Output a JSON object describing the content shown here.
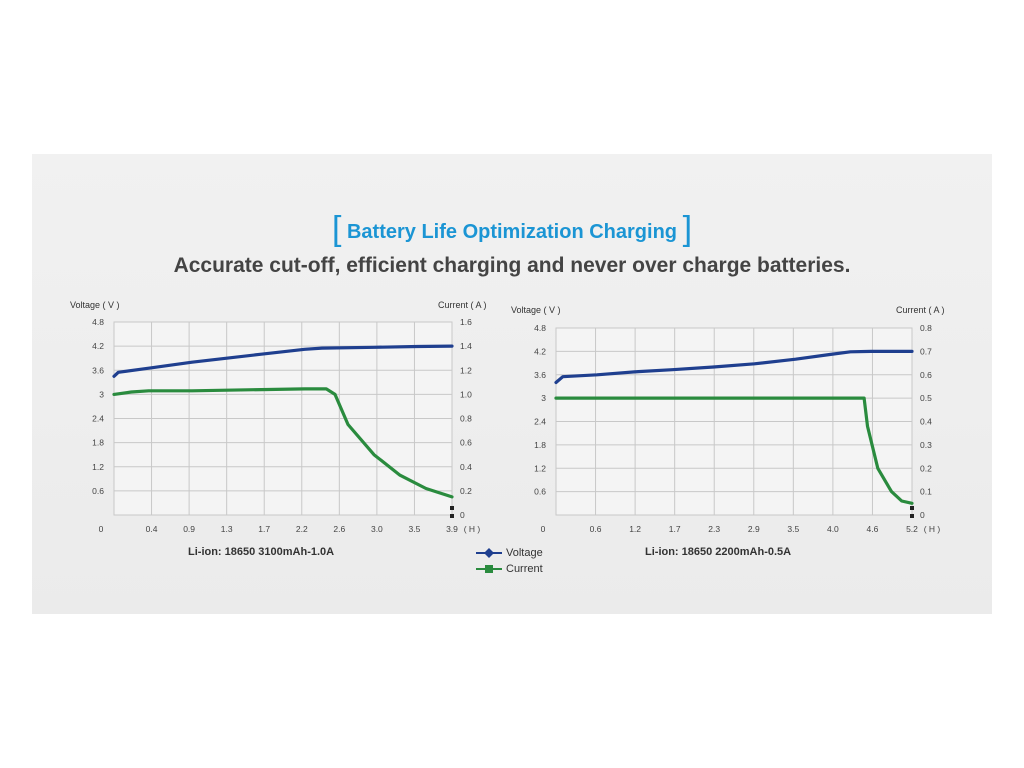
{
  "header": {
    "title": "Battery Life Optimization Charging",
    "subtitle": "Accurate cut-off, efficient charging and never over charge batteries."
  },
  "legend": {
    "voltage_label": "Voltage",
    "current_label": "Current"
  },
  "colors": {
    "voltage": "#1f3f8f",
    "current": "#2a8b3e",
    "title": "#1b95d4",
    "grid": "#c8c8c8"
  },
  "chart_data": [
    {
      "type": "line",
      "caption": "Li-ion: 18650 3100mAh-1.0A",
      "ylabel": "Voltage ( V )",
      "y2label": "Current ( A )",
      "xunit": "( H )",
      "x_ticks": [
        "0",
        "0.4",
        "0.9",
        "1.3",
        "1.7",
        "2.2",
        "2.6",
        "3.0",
        "3.5",
        "3.9"
      ],
      "y_ticks": [
        "0.6",
        "1.2",
        "1.8",
        "2.4",
        "3",
        "3.6",
        "4.2",
        "4.8"
      ],
      "y2_ticks": [
        "0",
        "0.2",
        "0.4",
        "0.6",
        "0.8",
        "1.0",
        "1.2",
        "1.4",
        "1.6"
      ],
      "ylim": [
        0,
        4.8
      ],
      "y2lim": [
        0,
        1.6
      ],
      "xlim": [
        0,
        3.9
      ],
      "grid": true,
      "series": [
        {
          "name": "Voltage",
          "axis": "left",
          "x": [
            0,
            0.05,
            0.4,
            0.9,
            1.3,
            1.7,
            2.2,
            2.4,
            3.0,
            3.5,
            3.9
          ],
          "y": [
            3.45,
            3.55,
            3.65,
            3.8,
            3.9,
            4.0,
            4.12,
            4.15,
            4.17,
            4.19,
            4.2
          ]
        },
        {
          "name": "Current",
          "axis": "right",
          "x": [
            0,
            0.2,
            0.4,
            0.9,
            1.3,
            1.7,
            2.2,
            2.45,
            2.55,
            2.7,
            3.0,
            3.3,
            3.6,
            3.9
          ],
          "y": [
            1.0,
            1.02,
            1.03,
            1.03,
            1.035,
            1.04,
            1.045,
            1.045,
            1.0,
            0.75,
            0.5,
            0.33,
            0.22,
            0.15
          ]
        }
      ]
    },
    {
      "type": "line",
      "caption": "Li-ion: 18650 2200mAh-0.5A",
      "ylabel": "Voltage ( V )",
      "y2label": "Current ( A )",
      "xunit": "( H )",
      "x_ticks": [
        "0",
        "0.6",
        "1.2",
        "1.7",
        "2.3",
        "2.9",
        "3.5",
        "4.0",
        "4.6",
        "5.2"
      ],
      "y_ticks": [
        "0.6",
        "1.2",
        "1.8",
        "2.4",
        "3",
        "3.6",
        "4.2",
        "4.8"
      ],
      "y2_ticks": [
        "0",
        "0.1",
        "0.2",
        "0.3",
        "0.4",
        "0.5",
        "0.6",
        "0.7",
        "0.8"
      ],
      "ylim": [
        0,
        4.8
      ],
      "y2lim": [
        0,
        0.8
      ],
      "xlim": [
        0,
        5.2
      ],
      "grid": true,
      "series": [
        {
          "name": "Voltage",
          "axis": "left",
          "x": [
            0,
            0.1,
            0.6,
            1.2,
            1.7,
            2.3,
            2.9,
            3.5,
            4.0,
            4.3,
            4.6,
            5.2
          ],
          "y": [
            3.4,
            3.55,
            3.6,
            3.68,
            3.73,
            3.8,
            3.88,
            4.0,
            4.12,
            4.19,
            4.2,
            4.2
          ]
        },
        {
          "name": "Current",
          "axis": "right",
          "x": [
            0,
            0.6,
            1.2,
            1.7,
            2.3,
            2.9,
            3.5,
            4.0,
            4.5,
            4.55,
            4.7,
            4.9,
            5.05,
            5.2
          ],
          "y": [
            0.5,
            0.5,
            0.5,
            0.5,
            0.5,
            0.5,
            0.5,
            0.5,
            0.5,
            0.38,
            0.2,
            0.1,
            0.06,
            0.05
          ]
        }
      ]
    }
  ]
}
